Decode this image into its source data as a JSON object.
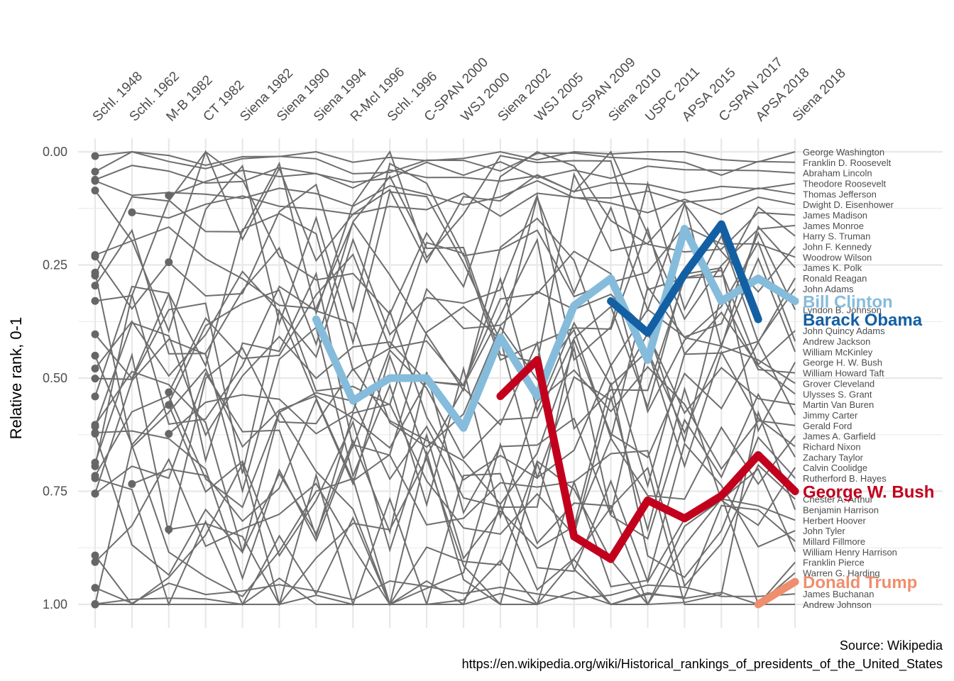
{
  "chart_data": {
    "type": "line",
    "ylabel": "Relative rank, 0-1",
    "ylim": [
      0,
      1
    ],
    "y_reversed": true,
    "grid": true,
    "y_ticks": [
      "0.00",
      "0.25",
      "0.50",
      "0.75",
      "1.00"
    ],
    "y_tick_values": [
      0,
      0.25,
      0.5,
      0.75,
      1.0
    ],
    "x_categories": [
      "Schl. 1948",
      "Schl. 1962",
      "M-B 1982",
      "CT 1982",
      "Siena 1982",
      "Siena 1990",
      "Siena 1994",
      "R-McI 1996",
      "Schl. 1996",
      "C-SPAN 2000",
      "WSJ 2000",
      "Siena 2002",
      "WSJ 2005",
      "C-SPAN 2009",
      "Siena 2010",
      "USPC 2011",
      "APSA 2015",
      "C-SPAN 2017",
      "APSA 2018",
      "Siena 2018"
    ],
    "presidents_final_order": [
      "George Washington",
      "Franklin D. Roosevelt",
      "Abraham Lincoln",
      "Theodore Roosevelt",
      "Thomas Jefferson",
      "Dwight D. Eisenhower",
      "James Madison",
      "James Monroe",
      "Harry S. Truman",
      "John F. Kennedy",
      "Woodrow Wilson",
      "James K. Polk",
      "Ronald Reagan",
      "John Adams",
      "Bill Clinton",
      "Lyndon B. Johnson",
      "Barack Obama",
      "John Quincy Adams",
      "Andrew Jackson",
      "William McKinley",
      "George H. W. Bush",
      "William Howard Taft",
      "Grover Cleveland",
      "Ulysses S. Grant",
      "Martin Van Buren",
      "Jimmy Carter",
      "Gerald Ford",
      "James A. Garfield",
      "Richard Nixon",
      "Zachary Taylor",
      "Calvin Coolidge",
      "Rutherford B. Hayes",
      "George W. Bush",
      "Chester A. Arthur",
      "Benjamin Harrison",
      "Herbert Hoover",
      "John Tyler",
      "Millard Fillmore",
      "William Henry Harrison",
      "Franklin Pierce",
      "Warren G. Harding",
      "Donald Trump",
      "James Buchanan",
      "Andrew Johnson"
    ],
    "highlighted_series": [
      {
        "name": "Bill Clinton",
        "color": "#85BCDB",
        "start_index": 6,
        "values": [
          0.37,
          0.55,
          0.5,
          0.5,
          0.61,
          0.41,
          0.54,
          0.34,
          0.28,
          0.46,
          0.17,
          0.33,
          0.28,
          0.33
        ]
      },
      {
        "name": "Barack Obama",
        "color": "#135FA3",
        "start_index": 14,
        "values": [
          0.33,
          0.4,
          0.27,
          0.16,
          0.37
        ]
      },
      {
        "name": "George W. Bush",
        "color": "#C2001D",
        "start_index": 11,
        "values": [
          0.54,
          0.46,
          0.85,
          0.9,
          0.77,
          0.81,
          0.76,
          0.67,
          0.75
        ]
      },
      {
        "name": "Donald Trump",
        "color": "#EF8E6D",
        "start_index": 18,
        "values": [
          1.0,
          0.95
        ]
      }
    ]
  },
  "caption": {
    "line1": "Source: Wikipedia",
    "line2": "https://en.wikipedia.org/wiki/Historical_rankings_of_presidents_of_the_United_States"
  },
  "colors": {
    "background_line": "#6E6E6E",
    "grid": "#E8E8E8",
    "point": "#666666"
  }
}
